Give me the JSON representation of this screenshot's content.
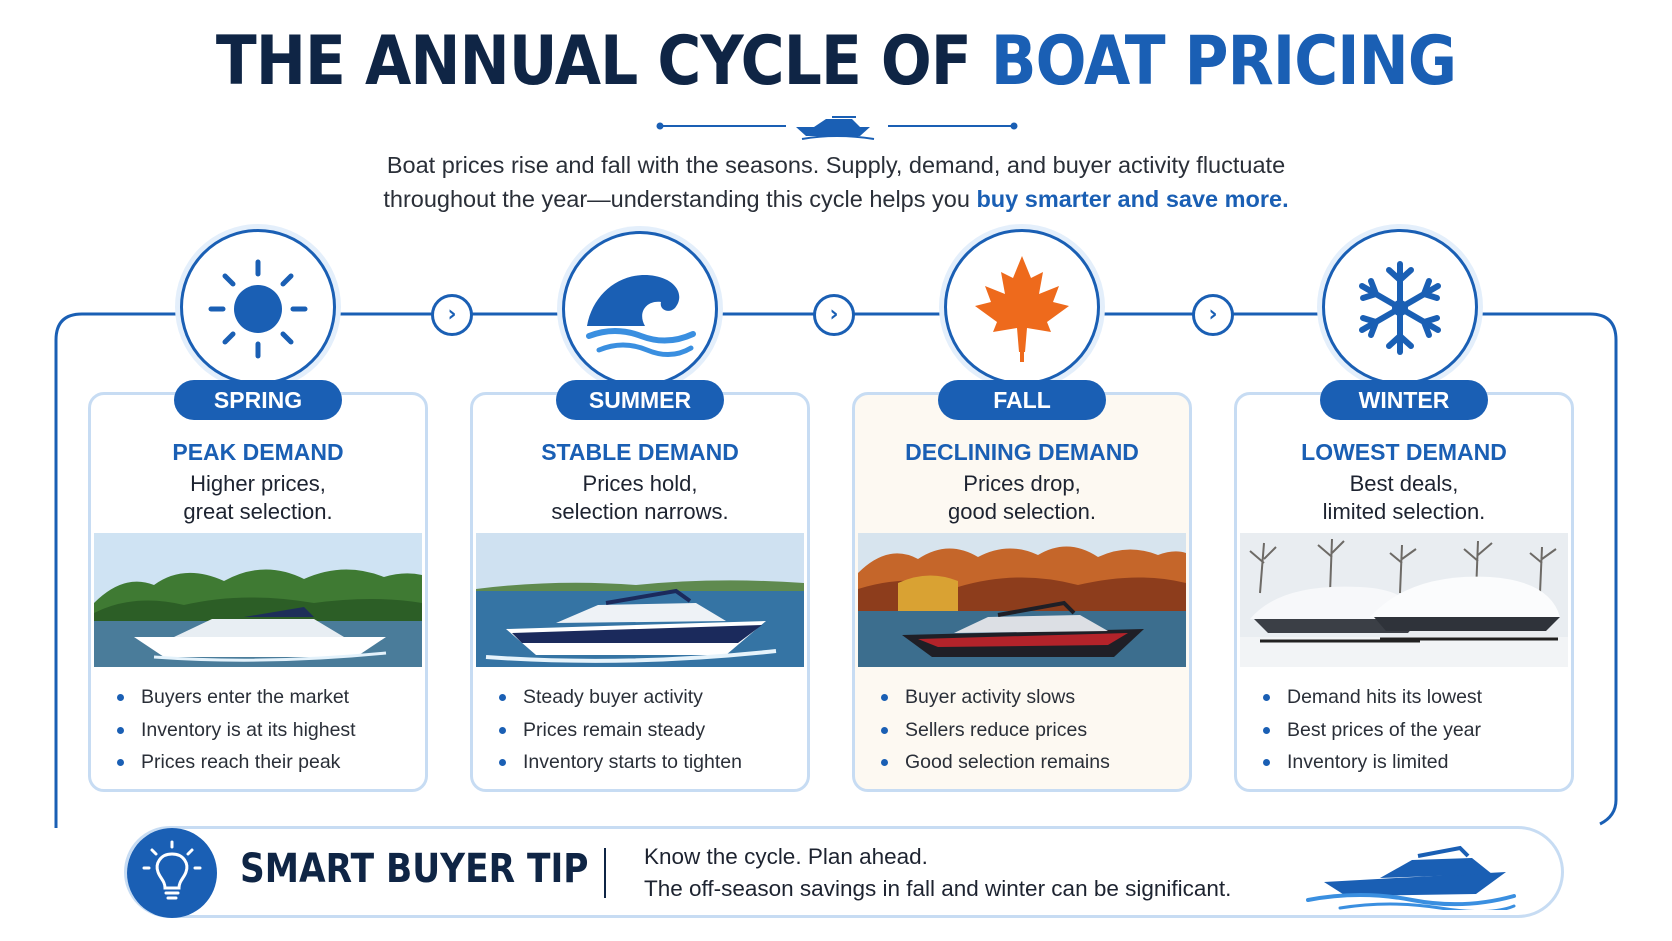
{
  "header": {
    "title_main": "THE ANNUAL CYCLE OF ",
    "title_accent": "BOAT PRICING",
    "subtitle_line1": "Boat prices rise and fall with the seasons. Supply, demand, and buyer activity fluctuate",
    "subtitle_line2": "throughout the year—understanding this cycle helps you ",
    "subtitle_highlight": "buy smarter and save more."
  },
  "colors": {
    "primary": "#1a5fb4",
    "navy": "#0f2545",
    "card_border": "#c7dcf3",
    "maple": "#ee6a1c"
  },
  "seasons": [
    {
      "label": "SPRING",
      "icon": "sun-icon",
      "heading": "PEAK DEMAND",
      "line1": "Higher prices,",
      "line2": "great selection.",
      "photo": "white-boat-on-lake-photo",
      "bullets": [
        "Buyers enter the market",
        "Inventory is at its highest",
        "Prices reach their peak"
      ]
    },
    {
      "label": "SUMMER",
      "icon": "wave-icon",
      "heading": "STABLE DEMAND",
      "line1": "Prices hold,",
      "line2": "selection narrows.",
      "photo": "navy-boat-cruising-photo",
      "bullets": [
        "Steady buyer activity",
        "Prices remain steady",
        "Inventory starts to tighten"
      ]
    },
    {
      "label": "FALL",
      "icon": "maple-leaf-icon",
      "heading": "DECLINING DEMAND",
      "line1": "Prices drop,",
      "line2": "good selection.",
      "photo": "dark-boat-autumn-photo",
      "bullets": [
        "Buyer activity slows",
        "Sellers reduce prices",
        "Good selection remains"
      ]
    },
    {
      "label": "WINTER",
      "icon": "snowflake-icon",
      "heading": "LOWEST DEMAND",
      "line1": "Best deals,",
      "line2": "limited selection.",
      "photo": "covered-boats-snow-photo",
      "bullets": [
        "Demand hits its lowest",
        "Best prices of the year",
        "Inventory is limited"
      ]
    }
  ],
  "tip": {
    "title": "SMART BUYER TIP",
    "line1": "Know the cycle. Plan ahead.",
    "line2": "The off-season savings in fall and winter can be significant.",
    "icon": "lightbulb-icon"
  }
}
